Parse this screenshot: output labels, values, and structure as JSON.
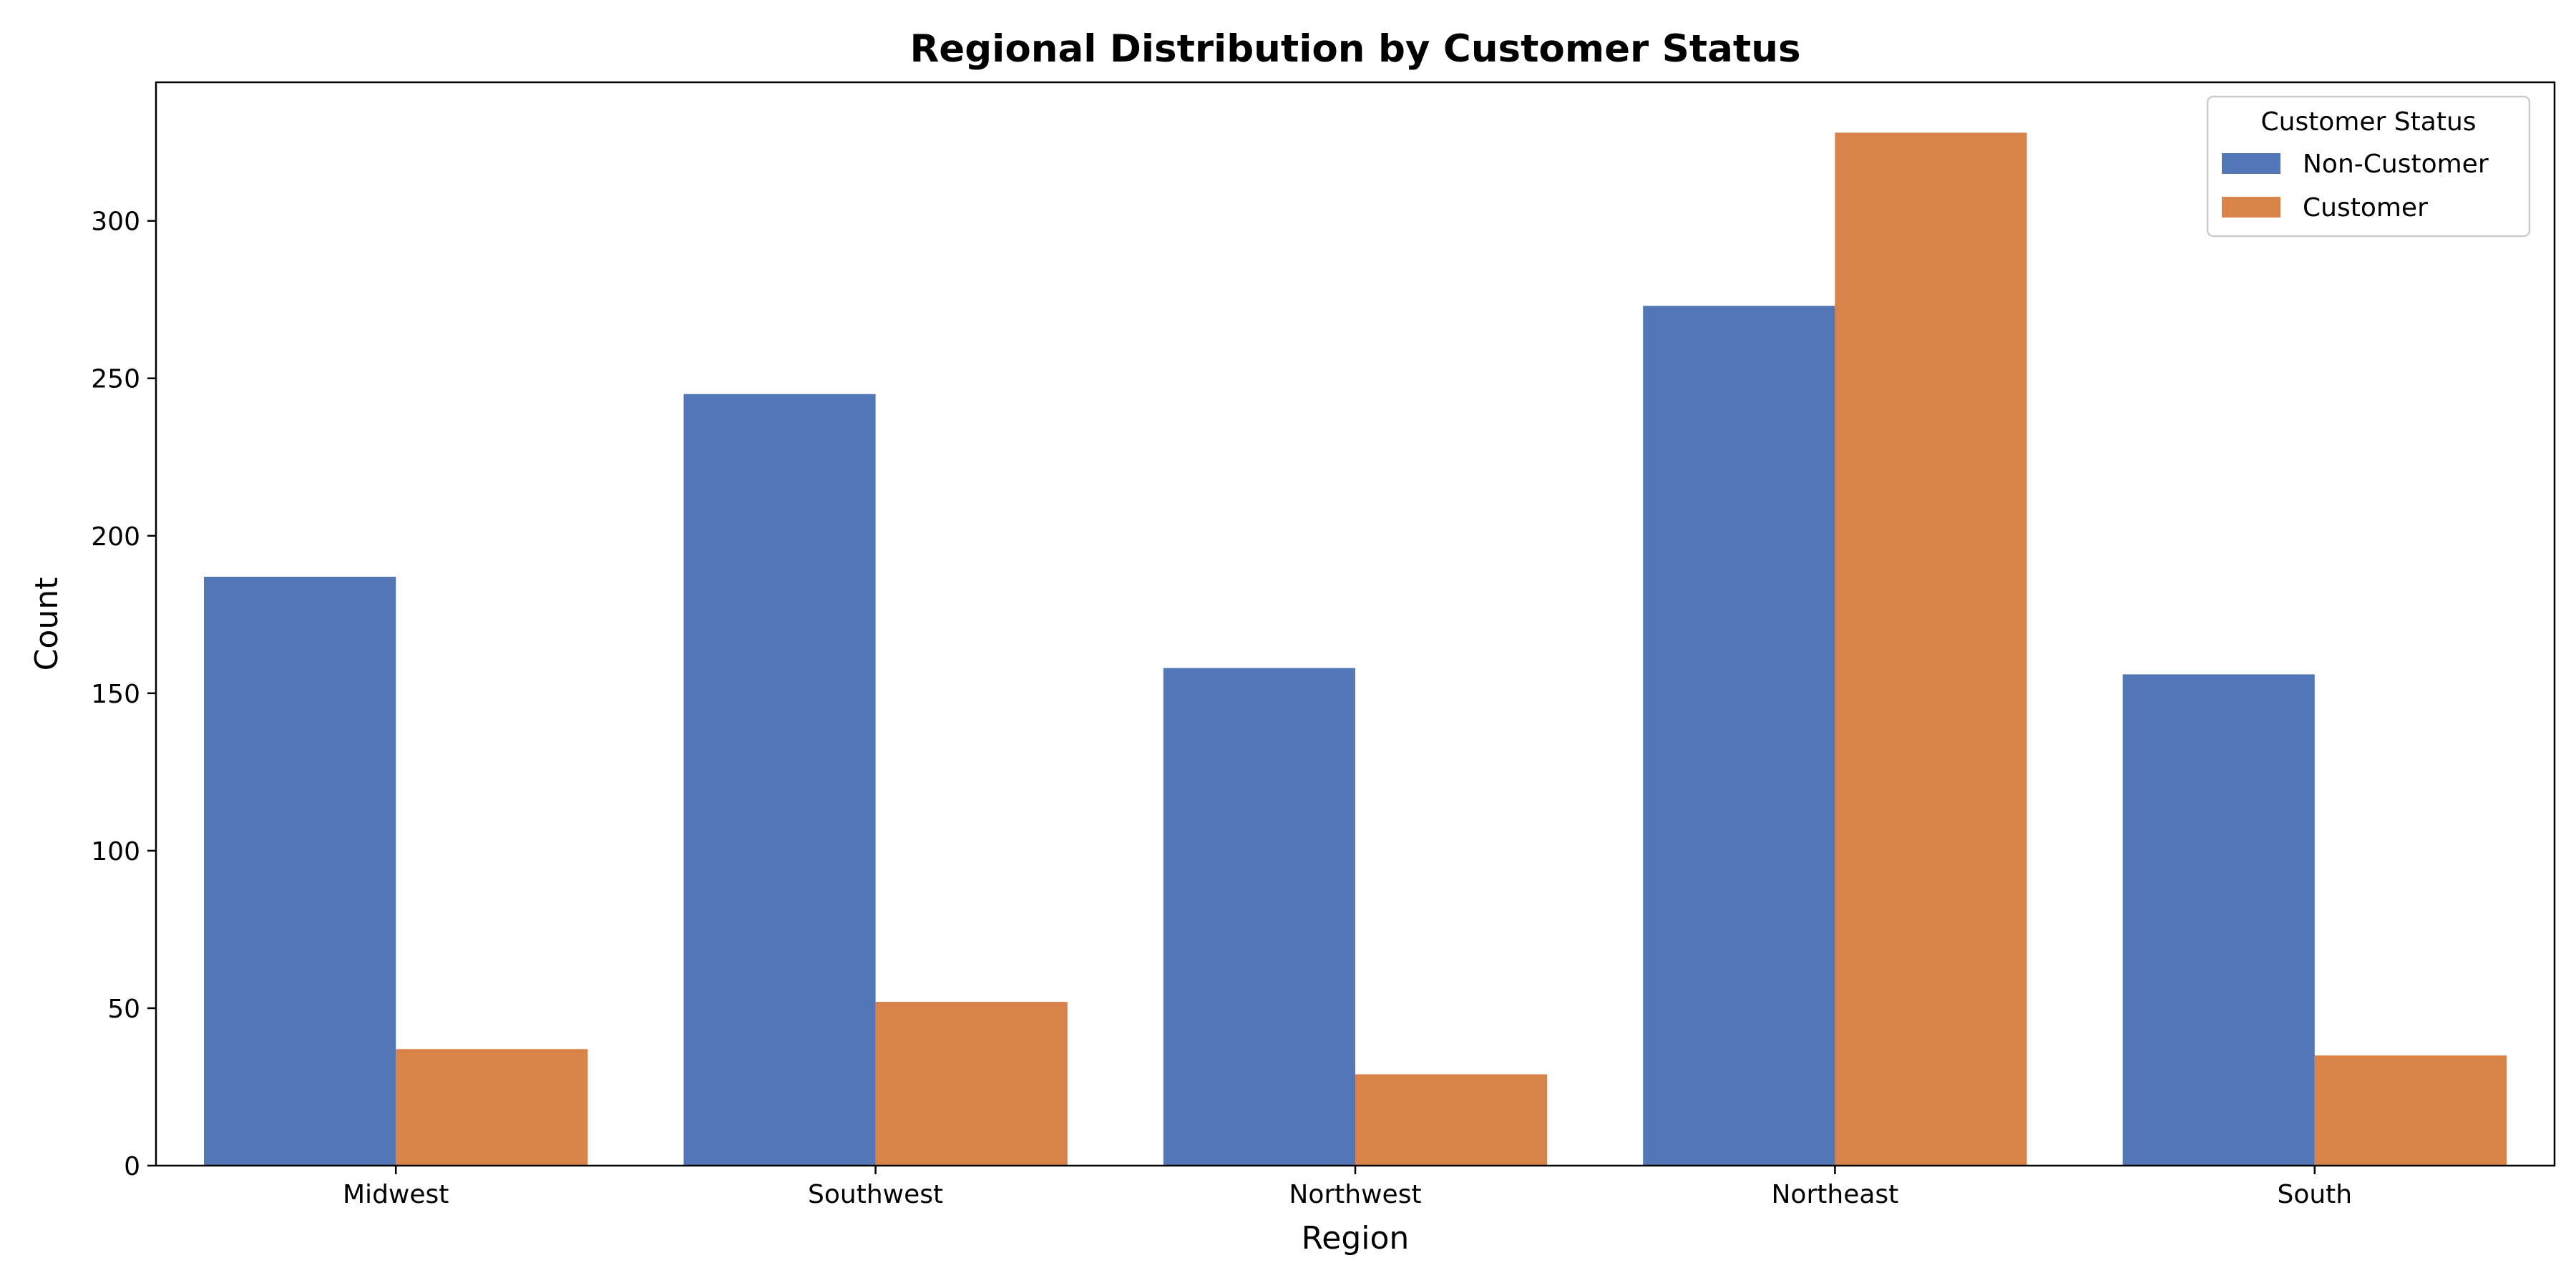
{
  "chart_data": {
    "type": "bar",
    "title": "Regional Distribution by Customer Status",
    "xlabel": "Region",
    "ylabel": "Count",
    "categories": [
      "Midwest",
      "Southwest",
      "Northwest",
      "Northeast",
      "South"
    ],
    "series": [
      {
        "name": "Non-Customer",
        "color": "#5276b6",
        "values": [
          187,
          245,
          158,
          273,
          156
        ]
      },
      {
        "name": "Customer",
        "color": "#d8834a",
        "values": [
          37,
          52,
          29,
          328,
          35
        ]
      }
    ],
    "ylim": [
      0,
      344
    ],
    "yticks": [
      0,
      50,
      100,
      150,
      200,
      250,
      300
    ],
    "legend": {
      "title": "Customer Status",
      "placement": "top-right"
    },
    "grid": false
  }
}
